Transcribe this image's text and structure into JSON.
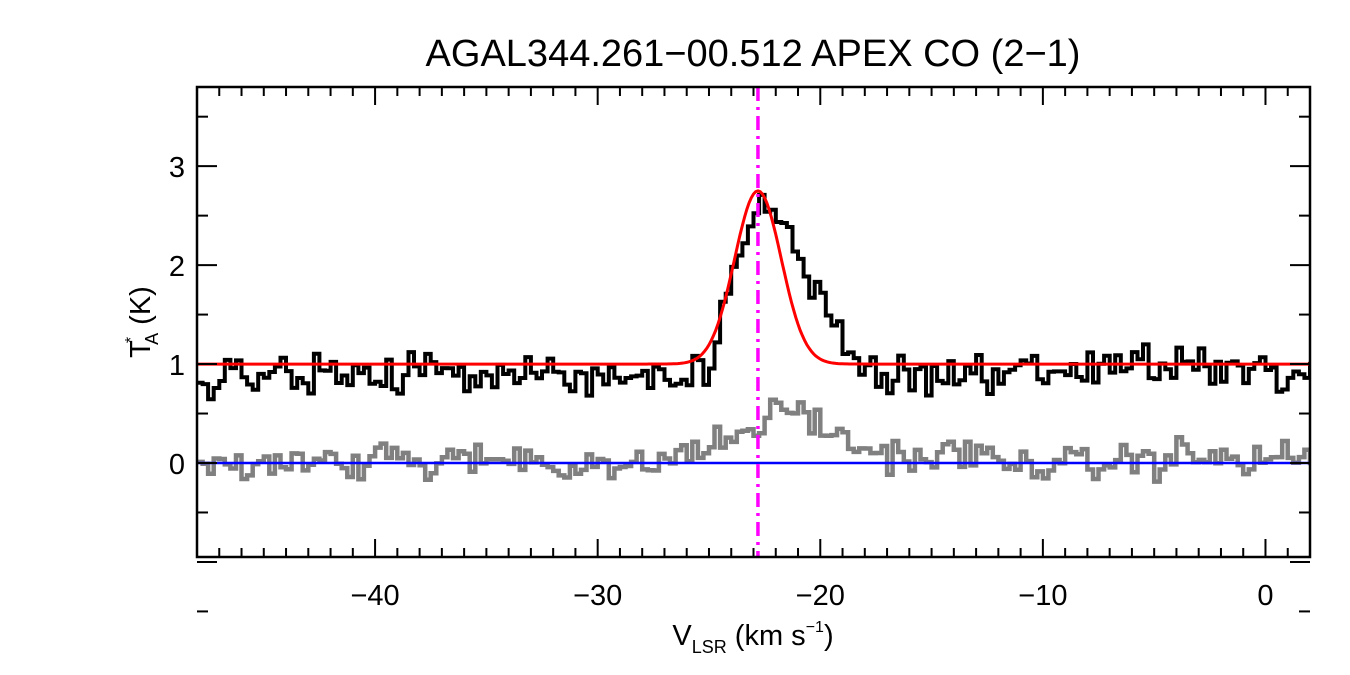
{
  "chart_data": {
    "type": "line",
    "title": "AGAL344.261−00.512  APEX CO (2−1)",
    "xlabel": {
      "main": "V",
      "sub": "LSR",
      "rest": " (km s",
      "sup": "−1",
      "end": ")"
    },
    "ylabel": {
      "main": "T",
      "sup": "*",
      "sub": "A",
      "rest": " (K)"
    },
    "xlim": [
      -48,
      2
    ],
    "ylim": [
      -0.95,
      3.8
    ],
    "xticks": [
      -40,
      -30,
      -20,
      -10,
      0
    ],
    "xtick_labels": [
      "−40",
      "−30",
      "−20",
      "−10",
      "0"
    ],
    "yticks": [
      0,
      1,
      2,
      3
    ],
    "ytick_labels": [
      "0",
      "1",
      "2",
      "3"
    ],
    "grid": false,
    "channel_width": 0.25,
    "vline": {
      "x": -22.8,
      "color": "#ff00ff",
      "style": "dash-dot"
    },
    "baseline": {
      "y": 0,
      "color": "#0000ff"
    },
    "fit": {
      "color": "#ff0000",
      "amplitude": 1.75,
      "center": -22.8,
      "sigma": 1.05,
      "offset": 1.0
    },
    "series": [
      {
        "color": "#000000",
        "step": true,
        "offset": 1.0,
        "anchors": [
          [
            -48,
            0.95
          ],
          [
            -47,
            0.78
          ],
          [
            -46,
            0.92
          ],
          [
            -45,
            0.85
          ],
          [
            -44,
            0.95
          ],
          [
            -43,
            0.88
          ],
          [
            -42,
            0.92
          ],
          [
            -41,
            0.86
          ],
          [
            -40,
            0.9
          ],
          [
            -39,
            0.85
          ],
          [
            -38,
            0.95
          ],
          [
            -37,
            0.9
          ],
          [
            -36,
            0.92
          ],
          [
            -35,
            0.9
          ],
          [
            -34,
            0.88
          ],
          [
            -33,
            0.98
          ],
          [
            -32,
            0.9
          ],
          [
            -31,
            0.88
          ],
          [
            -30,
            0.85
          ],
          [
            -29,
            0.8
          ],
          [
            -28,
            0.85
          ],
          [
            -27,
            0.9
          ],
          [
            -26,
            0.92
          ],
          [
            -25,
            0.98
          ],
          [
            -24.5,
            1.3
          ],
          [
            -24,
            1.9
          ],
          [
            -23.5,
            2.2
          ],
          [
            -23,
            2.55
          ],
          [
            -22.5,
            2.7
          ],
          [
            -22,
            2.5
          ],
          [
            -21.5,
            2.35
          ],
          [
            -21,
            2.1
          ],
          [
            -20.5,
            1.8
          ],
          [
            -20,
            1.75
          ],
          [
            -19.5,
            1.5
          ],
          [
            -19,
            1.25
          ],
          [
            -18.5,
            1.1
          ],
          [
            -18,
            0.95
          ],
          [
            -17,
            0.85
          ],
          [
            -16,
            0.9
          ],
          [
            -15,
            0.88
          ],
          [
            -14,
            0.92
          ],
          [
            -13,
            0.9
          ],
          [
            -12,
            0.95
          ],
          [
            -11,
            0.98
          ],
          [
            -10,
            0.95
          ],
          [
            -9,
            0.9
          ],
          [
            -8,
            0.98
          ],
          [
            -7,
            1.05
          ],
          [
            -6,
            1.0
          ],
          [
            -5,
            0.98
          ],
          [
            -4,
            1.0
          ],
          [
            -3,
            1.0
          ],
          [
            -2,
            0.97
          ],
          [
            -1,
            0.92
          ],
          [
            0,
            0.93
          ],
          [
            1,
            0.9
          ],
          [
            2,
            0.85
          ]
        ],
        "noise": 0.14
      },
      {
        "color": "#808080",
        "step": true,
        "offset": 0.0,
        "anchors": [
          [
            -48,
            0.0
          ],
          [
            -47,
            0.05
          ],
          [
            -46,
            -0.05
          ],
          [
            -45,
            0.02
          ],
          [
            -44,
            0.08
          ],
          [
            -43,
            0.05
          ],
          [
            -42,
            0.0
          ],
          [
            -41,
            -0.05
          ],
          [
            -40,
            0.05
          ],
          [
            -39,
            0.1
          ],
          [
            -38,
            0.0
          ],
          [
            -37,
            -0.03
          ],
          [
            -36,
            0.05
          ],
          [
            -35,
            0.02
          ],
          [
            -34,
            0.05
          ],
          [
            -33,
            0.08
          ],
          [
            -32,
            -0.05
          ],
          [
            -31,
            0.0
          ],
          [
            -30,
            0.05
          ],
          [
            -29,
            -0.1
          ],
          [
            -28,
            -0.05
          ],
          [
            -27,
            0.05
          ],
          [
            -26,
            0.1
          ],
          [
            -25,
            0.15
          ],
          [
            -24,
            0.25
          ],
          [
            -23,
            0.35
          ],
          [
            -22,
            0.5
          ],
          [
            -21,
            0.55
          ],
          [
            -20,
            0.4
          ],
          [
            -19,
            0.2
          ],
          [
            -18,
            0.15
          ],
          [
            -17,
            0.1
          ],
          [
            -16,
            0.05
          ],
          [
            -15,
            0.05
          ],
          [
            -14,
            0.1
          ],
          [
            -13,
            0.1
          ],
          [
            -12,
            0.0
          ],
          [
            -11,
            -0.02
          ],
          [
            -10,
            0.0
          ],
          [
            -9,
            0.0
          ],
          [
            -8,
            -0.05
          ],
          [
            -7,
            0.0
          ],
          [
            -6,
            0.05
          ],
          [
            -5,
            0.0
          ],
          [
            -4,
            0.1
          ],
          [
            -3,
            0.05
          ],
          [
            -2,
            0.05
          ],
          [
            -1,
            0.0
          ],
          [
            0,
            0.05
          ],
          [
            1,
            0.05
          ],
          [
            2,
            0.08
          ]
        ],
        "noise": 0.12
      }
    ]
  }
}
